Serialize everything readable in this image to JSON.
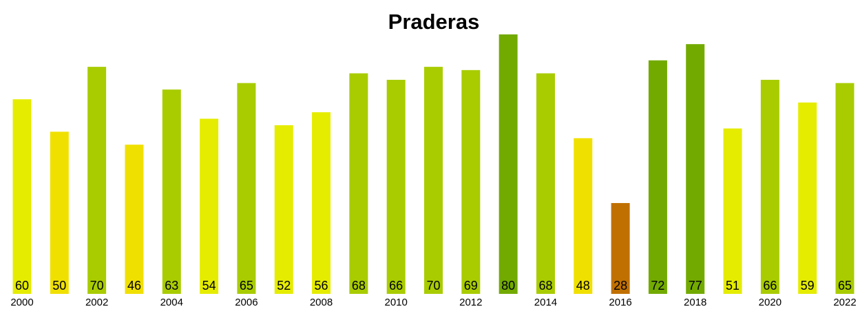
{
  "chart_data": {
    "type": "bar",
    "title": "Praderas",
    "categories": [
      "2000",
      null,
      "2002",
      null,
      "2004",
      null,
      "2006",
      null,
      "2008",
      null,
      "2010",
      null,
      "2012",
      null,
      "2014",
      null,
      "2016",
      null,
      "2018",
      null,
      "2020",
      null,
      "2022"
    ],
    "values": [
      60,
      50,
      70,
      46,
      63,
      54,
      65,
      52,
      56,
      68,
      66,
      70,
      69,
      80,
      68,
      48,
      28,
      72,
      77,
      51,
      66,
      59,
      65
    ],
    "colors": [
      "#e5ec00",
      "#f0e000",
      "#a8cc00",
      "#f0e000",
      "#a8cc00",
      "#e5ec00",
      "#a8cc00",
      "#e5ec00",
      "#e5ec00",
      "#a8cc00",
      "#a8cc00",
      "#a8cc00",
      "#a8cc00",
      "#72aa00",
      "#a8cc00",
      "#f0e000",
      "#c07000",
      "#72aa00",
      "#72aa00",
      "#e5ec00",
      "#a8cc00",
      "#e5ec00",
      "#a8cc00"
    ],
    "ylim": [
      0,
      80
    ]
  }
}
